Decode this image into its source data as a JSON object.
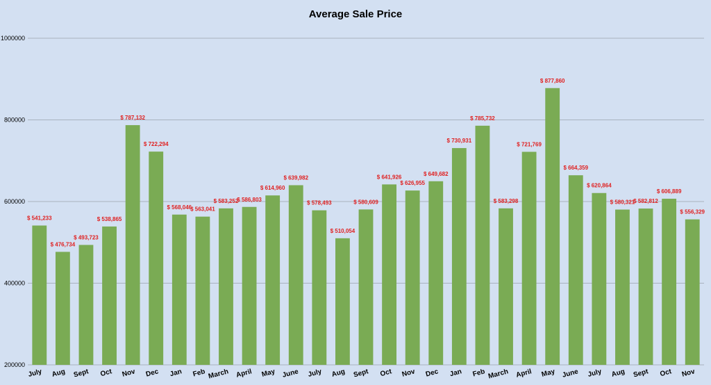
{
  "colors": {
    "background": "#d3e0f2",
    "bar": "#7aab54",
    "data_label": "#e02020",
    "gridline": "#9aa3ae"
  },
  "chart_data": {
    "type": "bar",
    "title": "Average Sale Price",
    "xlabel": "",
    "ylabel": "",
    "ylim": [
      200000,
      1000000
    ],
    "yticks": [
      200000,
      400000,
      600000,
      800000,
      1000000
    ],
    "ytick_labels": [
      "200000",
      "400000",
      "600000",
      "800000",
      "1000000"
    ],
    "grid": true,
    "legend": "none",
    "categories": [
      "July",
      "Aug",
      "Sept",
      "Oct",
      "Nov",
      "Dec",
      "Jan",
      "Feb",
      "March",
      "April",
      "May",
      "June",
      "July",
      "Aug",
      "Sept",
      "Oct",
      "Nov",
      "Dec",
      "Jan",
      "Feb",
      "March",
      "April",
      "May",
      "June",
      "July",
      "Aug",
      "Sept",
      "Oct",
      "Nov"
    ],
    "values": [
      541233,
      476734,
      493723,
      538865,
      787132,
      722294,
      568046,
      563041,
      583252,
      586803,
      614960,
      639982,
      578493,
      510054,
      580609,
      641926,
      626955,
      649682,
      730931,
      785732,
      583298,
      721769,
      877860,
      664359,
      620864,
      580321,
      582812,
      606889,
      556329
    ],
    "data_labels": [
      "$ 541,233",
      "$ 476,734",
      "$ 493,723",
      "$ 538,865",
      "$ 787,132",
      "$ 722,294",
      "$ 568,046",
      "$ 563,041",
      "$ 583,252",
      "$ 586,803",
      "$ 614,960",
      "$ 639,982",
      "$ 578,493",
      "$ 510,054",
      "$ 580,609",
      "$ 641,926",
      "$ 626,955",
      "$ 649,682",
      "$ 730,931",
      "$ 785,732",
      "$ 583,298",
      "$ 721,769",
      "$ 877,860",
      "$ 664,359",
      "$ 620,864",
      "$ 580,321",
      "$ 582,812",
      "$ 606,889",
      "$ 556,329"
    ]
  }
}
